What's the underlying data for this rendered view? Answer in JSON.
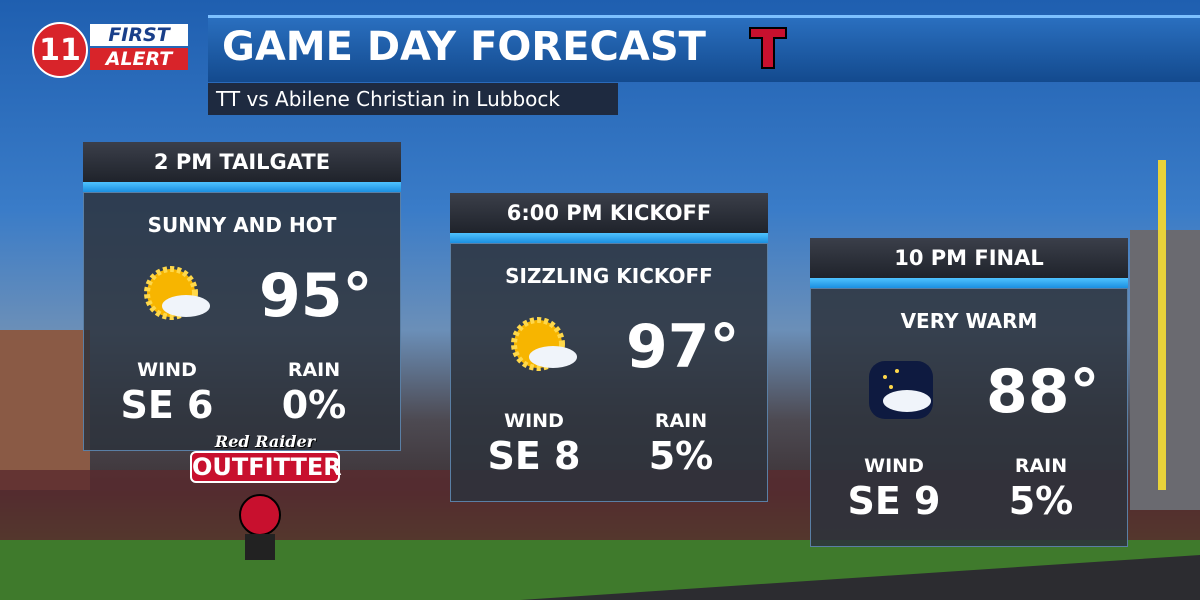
{
  "logo": {
    "number": "11",
    "first": "FIRST",
    "alert": "ALERT"
  },
  "header": {
    "title": "GAME DAY FORECAST",
    "subtitle": "TT vs Abilene Christian in Lubbock"
  },
  "panels": [
    {
      "heading": "2 PM  TAILGATE",
      "condition": "SUNNY AND HOT",
      "temp": "95°",
      "wind_label": "WIND",
      "wind": "SE 6",
      "rain_label": "RAIN",
      "rain": "0%"
    },
    {
      "heading": "6:00 PM KICKOFF",
      "condition": "SIZZLING KICKOFF",
      "temp": "97°",
      "wind_label": "WIND",
      "wind": "SE 8",
      "rain_label": "RAIN",
      "rain": "5%"
    },
    {
      "heading": "10 PM FINAL",
      "condition": "VERY WARM",
      "temp": "88°",
      "wind_label": "WIND",
      "wind": "SE 9",
      "rain_label": "RAIN",
      "rain": "5%"
    }
  ],
  "sponsor": {
    "script": "Red Raider",
    "name": "OUTFITTER"
  }
}
